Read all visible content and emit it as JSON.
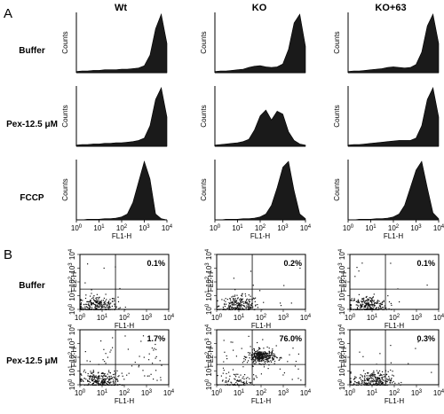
{
  "panels": {
    "A": "A",
    "B": "B"
  },
  "columns": [
    "Wt",
    "KO",
    "KO+63"
  ],
  "rows_a": [
    "Buffer",
    "Pex-12.5 μM",
    "FCCP"
  ],
  "rows_b": [
    "Buffer",
    "Pex-12.5 μM"
  ],
  "chart_data": [
    {
      "type": "area",
      "panel": "A",
      "chart": "histogram",
      "xlabel": "FL1-H",
      "ylabel": "Counts",
      "x_scale": "log",
      "xlim": [
        1,
        10000
      ],
      "x_ticks": [
        "10^0",
        "10^1",
        "10^2",
        "10^3",
        "10^4"
      ],
      "x": [
        1,
        1.78,
        3.16,
        5.62,
        10,
        17.8,
        31.6,
        56.2,
        100,
        178,
        316,
        562,
        1000,
        1780,
        3160,
        5620,
        10000
      ],
      "series_units": "relative counts (0-1)",
      "rows": [
        {
          "row": "Buffer",
          "series": [
            {
              "column": "Wt",
              "values": [
                0.02,
                0.03,
                0.03,
                0.04,
                0.04,
                0.05,
                0.05,
                0.05,
                0.06,
                0.06,
                0.07,
                0.08,
                0.12,
                0.3,
                0.75,
                1.0,
                0.5
              ]
            },
            {
              "column": "KO",
              "values": [
                0.02,
                0.03,
                0.03,
                0.04,
                0.05,
                0.06,
                0.09,
                0.11,
                0.12,
                0.1,
                0.09,
                0.1,
                0.15,
                0.4,
                0.85,
                1.0,
                0.45
              ]
            },
            {
              "column": "KO+63",
              "values": [
                0.02,
                0.03,
                0.03,
                0.04,
                0.05,
                0.06,
                0.07,
                0.09,
                0.1,
                0.09,
                0.08,
                0.09,
                0.14,
                0.35,
                0.8,
                1.0,
                0.5
              ]
            }
          ]
        },
        {
          "row": "Pex-12.5 μM",
          "series": [
            {
              "column": "Wt",
              "values": [
                0.02,
                0.03,
                0.03,
                0.04,
                0.04,
                0.05,
                0.05,
                0.06,
                0.06,
                0.07,
                0.08,
                0.1,
                0.14,
                0.35,
                0.8,
                1.0,
                0.5
              ]
            },
            {
              "column": "KO",
              "values": [
                0.02,
                0.03,
                0.04,
                0.05,
                0.06,
                0.08,
                0.12,
                0.28,
                0.52,
                0.62,
                0.45,
                0.6,
                0.55,
                0.25,
                0.1,
                0.04,
                0.02
              ]
            },
            {
              "column": "KO+63",
              "values": [
                0.02,
                0.03,
                0.03,
                0.04,
                0.05,
                0.06,
                0.07,
                0.08,
                0.09,
                0.1,
                0.1,
                0.1,
                0.14,
                0.35,
                0.8,
                1.0,
                0.5
              ]
            }
          ]
        },
        {
          "row": "FCCP",
          "series": [
            {
              "column": "Wt",
              "values": [
                0.0,
                0.0,
                0.01,
                0.01,
                0.01,
                0.02,
                0.02,
                0.03,
                0.05,
                0.1,
                0.3,
                0.65,
                1.0,
                0.7,
                0.1,
                0.02,
                0.0
              ]
            },
            {
              "column": "KO",
              "values": [
                0.0,
                0.0,
                0.01,
                0.01,
                0.01,
                0.02,
                0.02,
                0.03,
                0.05,
                0.1,
                0.25,
                0.55,
                0.9,
                1.0,
                0.5,
                0.1,
                0.02
              ]
            },
            {
              "column": "KO+63",
              "values": [
                0.0,
                0.0,
                0.01,
                0.01,
                0.01,
                0.02,
                0.02,
                0.03,
                0.05,
                0.1,
                0.25,
                0.55,
                0.85,
                1.0,
                0.55,
                0.12,
                0.02
              ]
            }
          ]
        }
      ]
    },
    {
      "type": "scatter",
      "panel": "B",
      "chart": "dot plot",
      "xlabel": "FL1-H",
      "ylabel": "FL2-H",
      "x_scale": "log",
      "y_scale": "log",
      "xlim": [
        1,
        10000
      ],
      "ylim": [
        1,
        10000
      ],
      "x_ticks": [
        "10^0",
        "10^1",
        "10^2",
        "10^3",
        "10^4"
      ],
      "y_ticks": [
        "10^0",
        "10^1",
        "10^2",
        "10^3",
        "10^4"
      ],
      "gates": {
        "x": 40,
        "y": 30
      },
      "rows": [
        {
          "row": "Buffer",
          "series": [
            {
              "column": "Wt",
              "percent": "0.1%",
              "clusters": [
                {
                  "cx": 6,
                  "cy": 2,
                  "spread": 0.45,
                  "n": 260
                }
              ],
              "sparse": 8
            },
            {
              "column": "KO",
              "percent": "0.2%",
              "clusters": [
                {
                  "cx": 10,
                  "cy": 2,
                  "spread": 0.45,
                  "n": 240
                }
              ],
              "sparse": 10
            },
            {
              "column": "KO+63",
              "percent": "0.1%",
              "clusters": [
                {
                  "cx": 6,
                  "cy": 2,
                  "spread": 0.45,
                  "n": 250
                }
              ],
              "sparse": 8
            }
          ]
        },
        {
          "row": "Pex-12.5 μM",
          "series": [
            {
              "column": "Wt",
              "percent": "1.7%",
              "clusters": [
                {
                  "cx": 8,
                  "cy": 2,
                  "spread": 0.45,
                  "n": 260
                }
              ],
              "sparse": 60
            },
            {
              "column": "KO",
              "percent": "76.0%",
              "clusters": [
                {
                  "cx": 100,
                  "cy": 120,
                  "spread": 0.3,
                  "n": 320
                },
                {
                  "cx": 8,
                  "cy": 2,
                  "spread": 0.4,
                  "n": 90
                }
              ],
              "sparse": 40
            },
            {
              "column": "KO+63",
              "percent": "0.3%",
              "clusters": [
                {
                  "cx": 10,
                  "cy": 2,
                  "spread": 0.45,
                  "n": 260
                }
              ],
              "sparse": 14
            }
          ]
        }
      ]
    }
  ]
}
